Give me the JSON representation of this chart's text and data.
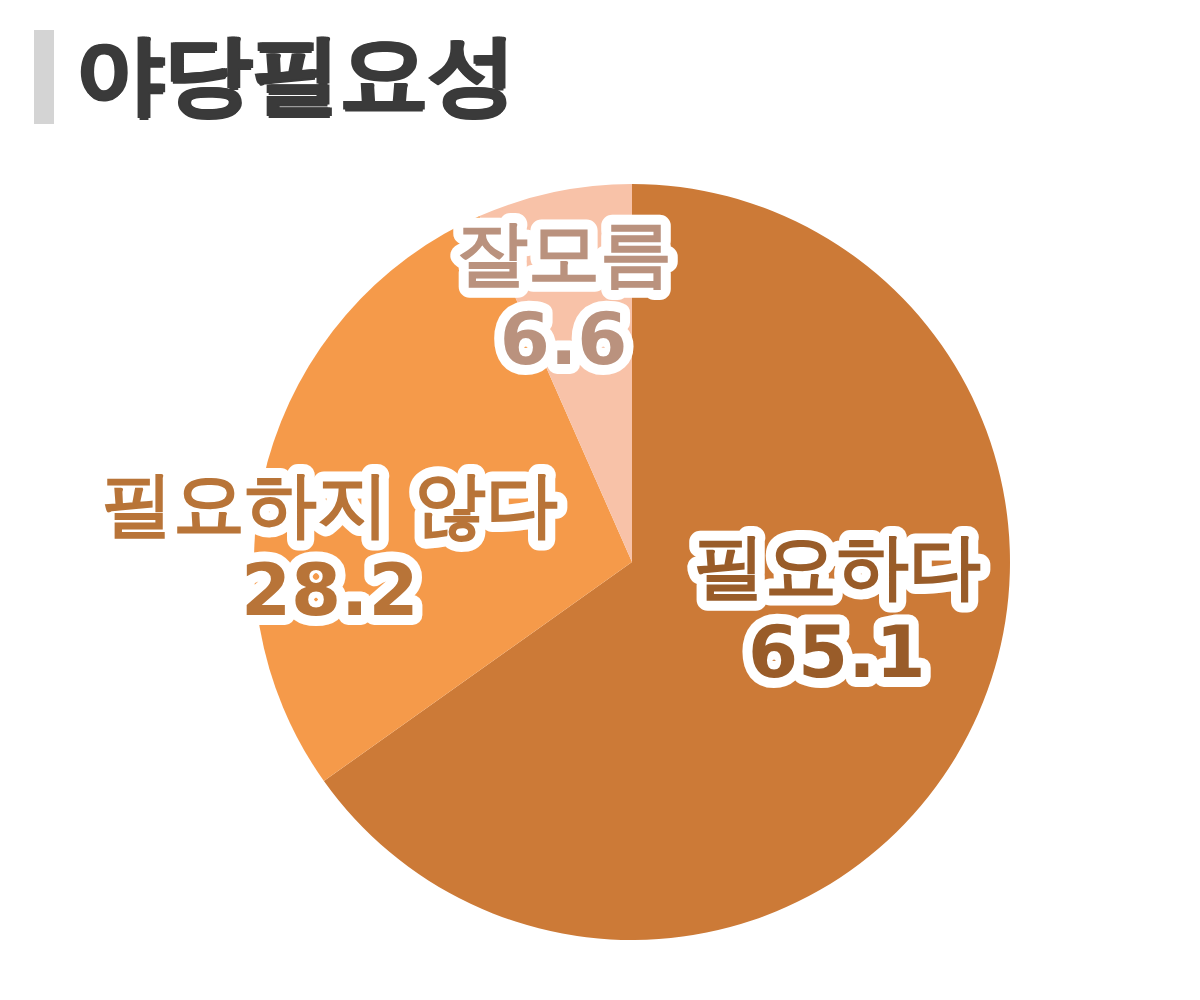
{
  "chart_data": {
    "type": "pie",
    "title": "야당필요성",
    "categories": [
      "필요하다",
      "필요하지 않다",
      "잘모름"
    ],
    "values": [
      65.1,
      28.2,
      6.6
    ],
    "colors": [
      "#cc7a37",
      "#f59a4a",
      "#f8c2a8"
    ],
    "data_labels": true,
    "legend": false
  }
}
